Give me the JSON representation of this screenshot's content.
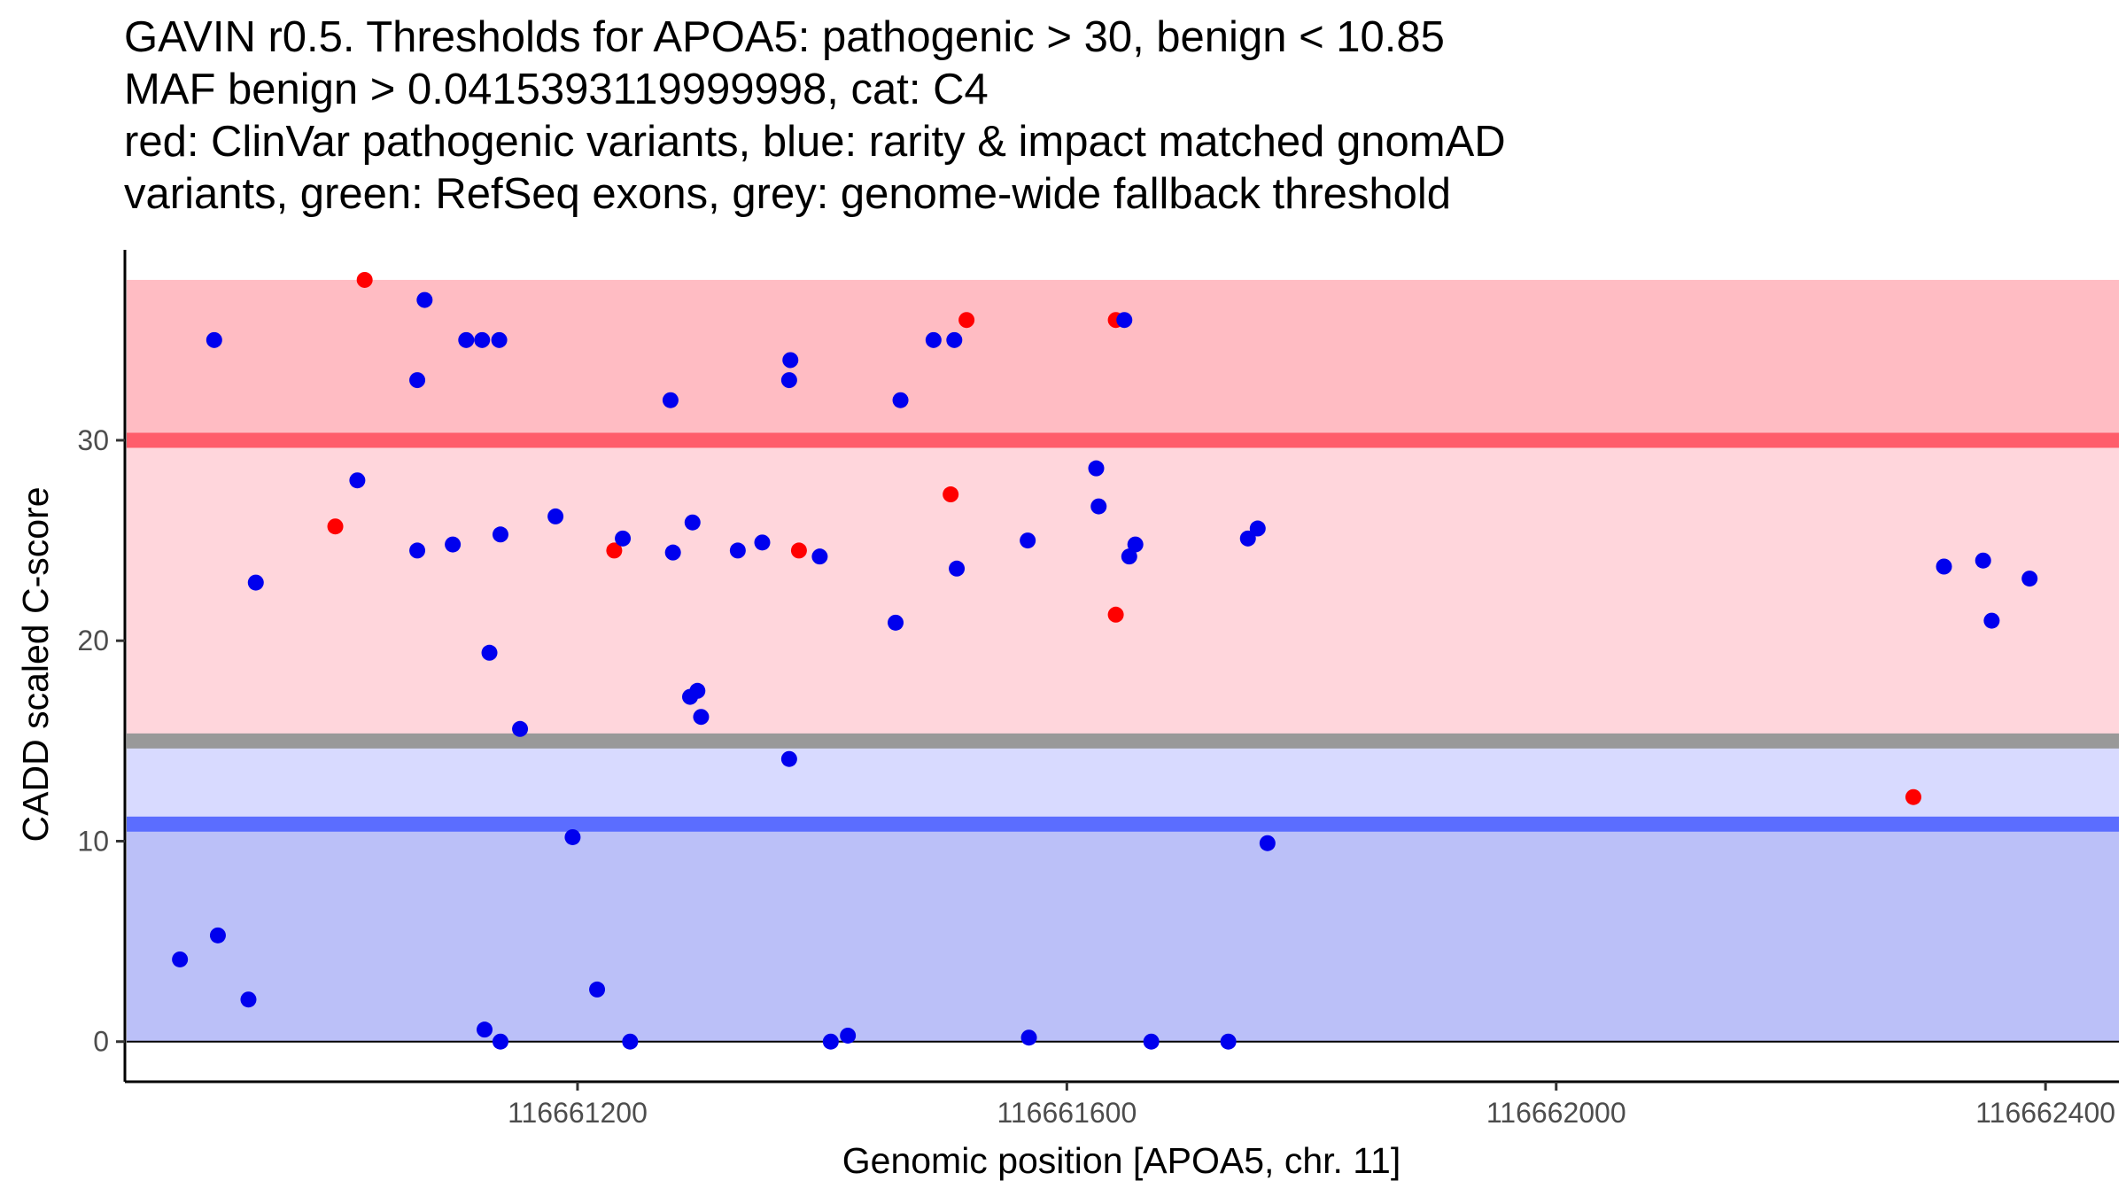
{
  "chart_data": {
    "type": "scatter",
    "title": [
      "GAVIN r0.5. Thresholds for APOA5: pathogenic > 30, benign < 10.85",
      "MAF benign > 0.0415393119999998, cat: C4",
      "red: ClinVar pathogenic variants, blue: rarity & impact matched gnomAD",
      "variants, green: RefSeq exons, grey: genome-wide fallback threshold"
    ],
    "xlabel": "Genomic position [APOA5, chr. 11]",
    "ylabel": "CADD scaled C-score",
    "xlim": [
      116660830,
      116662460
    ],
    "ylim": [
      -2,
      39.5
    ],
    "x_ticks": [
      116661200,
      116661600,
      116662000,
      116662400
    ],
    "y_ticks": [
      0,
      10,
      20,
      30
    ],
    "thresholds": {
      "pathogenic": 30,
      "benign": 10.85,
      "genome_wide_fallback": 15
    },
    "bands": [
      {
        "name": "pathogenic-high-band",
        "from": 30,
        "to": 38,
        "color": "#ffbcc3"
      },
      {
        "name": "pathogenic-mid-band",
        "from": 15,
        "to": 30,
        "color": "#ffd6dc"
      },
      {
        "name": "benign-upper-band",
        "from": 10.85,
        "to": 15,
        "color": "#d8daff"
      },
      {
        "name": "benign-lower-band",
        "from": 0,
        "to": 10.85,
        "color": "#bbc0f8"
      }
    ],
    "lines": [
      {
        "name": "pathogenic-threshold-line",
        "y": 30,
        "color": "#ff5d6b"
      },
      {
        "name": "fallback-threshold-line",
        "y": 15,
        "color": "#999999"
      },
      {
        "name": "benign-threshold-line",
        "y": 10.85,
        "color": "#5b6dff"
      },
      {
        "name": "zero-line",
        "y": 0,
        "color": "#000000"
      }
    ],
    "series": [
      {
        "name": "ClinVar pathogenic variants",
        "color": "#ff0000",
        "points": [
          [
            116661026,
            38
          ],
          [
            116661002,
            25.7
          ],
          [
            116661230,
            24.5
          ],
          [
            116661381,
            24.5
          ],
          [
            116661518,
            36
          ],
          [
            116661505,
            27.3
          ],
          [
            116661640,
            36
          ],
          [
            116661640,
            21.3
          ],
          [
            116662292,
            12.2
          ]
        ]
      },
      {
        "name": "rarity & impact matched gnomAD variants",
        "color": "#0000ee",
        "points": [
          [
            116660903,
            35
          ],
          [
            116660875,
            4.1
          ],
          [
            116660906,
            5.3
          ],
          [
            116660931,
            2.1
          ],
          [
            116660937,
            22.9
          ],
          [
            116661020,
            28
          ],
          [
            116661075,
            37
          ],
          [
            116661069,
            33
          ],
          [
            116661069,
            24.5
          ],
          [
            116661098,
            24.8
          ],
          [
            116661109,
            35
          ],
          [
            116661122,
            35
          ],
          [
            116661136,
            35
          ],
          [
            116661128,
            19.4
          ],
          [
            116661124,
            0.6
          ],
          [
            116661137,
            0
          ],
          [
            116661137,
            25.3
          ],
          [
            116661153,
            15.6
          ],
          [
            116661182,
            26.2
          ],
          [
            116661196,
            10.2
          ],
          [
            116661216,
            2.6
          ],
          [
            116661237,
            25.1
          ],
          [
            116661243,
            0
          ],
          [
            116661276,
            32
          ],
          [
            116661278,
            24.4
          ],
          [
            116661292,
            17.2
          ],
          [
            116661294,
            25.9
          ],
          [
            116661298,
            17.5
          ],
          [
            116661301,
            16.2
          ],
          [
            116661331,
            24.5
          ],
          [
            116661351,
            24.9
          ],
          [
            116661373,
            33
          ],
          [
            116661374,
            34
          ],
          [
            116661373,
            14.1
          ],
          [
            116661398,
            24.2
          ],
          [
            116661407,
            0
          ],
          [
            116661421,
            0.3
          ],
          [
            116661460,
            20.9
          ],
          [
            116661464,
            32
          ],
          [
            116661491,
            35
          ],
          [
            116661508,
            35
          ],
          [
            116661510,
            23.6
          ],
          [
            116661568,
            25
          ],
          [
            116661569,
            0.2
          ],
          [
            116661624,
            28.6
          ],
          [
            116661626,
            26.7
          ],
          [
            116661647,
            36
          ],
          [
            116661651,
            24.2
          ],
          [
            116661656,
            24.8
          ],
          [
            116661669,
            0
          ],
          [
            116661732,
            0
          ],
          [
            116661748,
            25.1
          ],
          [
            116661756,
            25.6
          ],
          [
            116661764,
            9.9
          ],
          [
            116662317,
            23.7
          ],
          [
            116662349,
            24
          ],
          [
            116662356,
            21
          ],
          [
            116662387,
            23.1
          ]
        ]
      }
    ]
  }
}
